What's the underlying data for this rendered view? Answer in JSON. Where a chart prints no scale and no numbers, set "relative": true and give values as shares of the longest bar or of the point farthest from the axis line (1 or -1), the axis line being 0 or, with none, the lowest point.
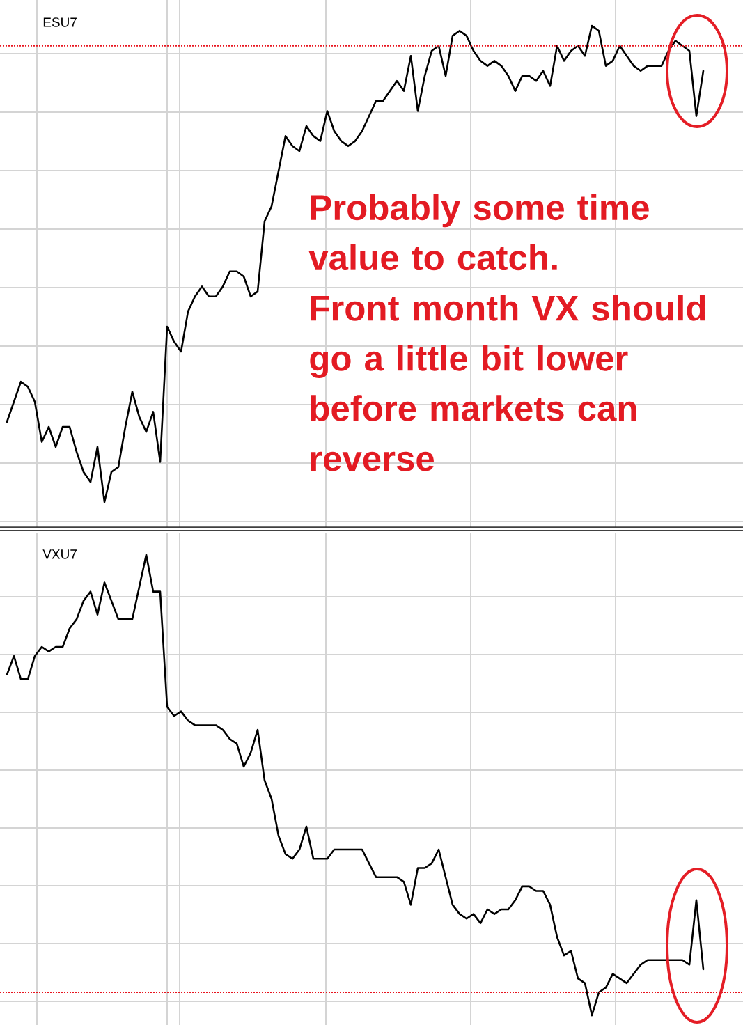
{
  "chart_data": [
    {
      "type": "line",
      "title": "ESU7",
      "relative": true,
      "grid": true,
      "categories": [
        null,
        null,
        null,
        null,
        null,
        null,
        null,
        null,
        null,
        null,
        null,
        null,
        null,
        null,
        null,
        null,
        null,
        null,
        null,
        null,
        null,
        null,
        null,
        null,
        null,
        null,
        null,
        null,
        null,
        null,
        null,
        null,
        null,
        null,
        null,
        null,
        null,
        null,
        null,
        null,
        null,
        null,
        null,
        null,
        null,
        null,
        null,
        null,
        null,
        null,
        null,
        null,
        null,
        null,
        null,
        null,
        null,
        null,
        null,
        null,
        null,
        null,
        null,
        null,
        null,
        null,
        null,
        null,
        null,
        null,
        null,
        null,
        null,
        null,
        null,
        null,
        null,
        null,
        null,
        null,
        null,
        null,
        null,
        null,
        null,
        null,
        null,
        null,
        null,
        null,
        null,
        null,
        null,
        null,
        null,
        null,
        null,
        null,
        null,
        null,
        null
      ],
      "series": [
        {
          "color": "#000000",
          "values": [
            0.21,
            0.25,
            0.29,
            0.28,
            0.25,
            0.17,
            0.2,
            0.16,
            0.2,
            0.2,
            0.15,
            0.11,
            0.09,
            0.16,
            0.05,
            0.11,
            0.12,
            0.2,
            0.27,
            0.22,
            0.19,
            0.23,
            0.13,
            0.4,
            0.37,
            0.35,
            0.43,
            0.46,
            0.48,
            0.46,
            0.46,
            0.48,
            0.51,
            0.51,
            0.5,
            0.46,
            0.47,
            0.61,
            0.64,
            0.71,
            0.78,
            0.76,
            0.75,
            0.8,
            0.78,
            0.77,
            0.83,
            0.79,
            0.77,
            0.76,
            0.77,
            0.79,
            0.82,
            0.85,
            0.85,
            0.87,
            0.89,
            0.87,
            0.94,
            0.83,
            0.9,
            0.95,
            0.96,
            0.9,
            0.98,
            0.99,
            0.98,
            0.95,
            0.93,
            0.92,
            0.93,
            0.92,
            0.9,
            0.87,
            0.9,
            0.9,
            0.89,
            0.91,
            0.88,
            0.96,
            0.93,
            0.95,
            0.96,
            0.94,
            1,
            0.99,
            0.92,
            0.93,
            0.96,
            0.94,
            0.92,
            0.91,
            0.92,
            0.92,
            0.92,
            0.95,
            0.97,
            0.96,
            0.95,
            0.82,
            0.91
          ]
        }
      ],
      "ref_lines": [
        {
          "axis": "y",
          "value": 0.96,
          "color": "#e8141e",
          "line_style": "dotted"
        }
      ],
      "annotations": [
        "Probably some time value to catch.",
        "Front month VX should go a little bit lower before markets can reverse"
      ]
    },
    {
      "type": "line",
      "title": "VXU7",
      "relative": true,
      "grid": true,
      "categories": [
        null,
        null,
        null,
        null,
        null,
        null,
        null,
        null,
        null,
        null,
        null,
        null,
        null,
        null,
        null,
        null,
        null,
        null,
        null,
        null,
        null,
        null,
        null,
        null,
        null,
        null,
        null,
        null,
        null,
        null,
        null,
        null,
        null,
        null,
        null,
        null,
        null,
        null,
        null,
        null,
        null,
        null,
        null,
        null,
        null,
        null,
        null,
        null,
        null,
        null,
        null,
        null,
        null,
        null,
        null,
        null,
        null,
        null,
        null,
        null,
        null,
        null,
        null,
        null,
        null,
        null,
        null,
        null,
        null,
        null,
        null,
        null,
        null,
        null,
        null,
        null,
        null,
        null,
        null,
        null,
        null,
        null,
        null,
        null,
        null,
        null,
        null,
        null,
        null,
        null,
        null,
        null,
        null,
        null,
        null,
        null,
        null,
        null,
        null,
        null,
        null
      ],
      "series": [
        {
          "color": "#000000",
          "values": [
            0.74,
            0.78,
            0.73,
            0.73,
            0.78,
            0.8,
            0.79,
            0.8,
            0.8,
            0.84,
            0.86,
            0.9,
            0.92,
            0.87,
            0.94,
            0.9,
            0.86,
            0.86,
            0.86,
            0.93,
            1,
            0.92,
            0.92,
            0.67,
            0.65,
            0.66,
            0.64,
            0.63,
            0.63,
            0.63,
            0.63,
            0.62,
            0.6,
            0.59,
            0.54,
            0.57,
            0.62,
            0.51,
            0.47,
            0.39,
            0.35,
            0.34,
            0.36,
            0.41,
            0.34,
            0.34,
            0.34,
            0.36,
            0.36,
            0.36,
            0.36,
            0.36,
            0.33,
            0.3,
            0.3,
            0.3,
            0.3,
            0.29,
            0.24,
            0.32,
            0.32,
            0.33,
            0.36,
            0.3,
            0.24,
            0.22,
            0.21,
            0.22,
            0.2,
            0.23,
            0.22,
            0.23,
            0.23,
            0.25,
            0.28,
            0.28,
            0.27,
            0.27,
            0.24,
            0.17,
            0.13,
            0.14,
            0.08,
            0.07,
            0,
            0.05,
            0.06,
            0.09,
            0.08,
            0.07,
            0.09,
            0.11,
            0.12,
            0.12,
            0.12,
            0.12,
            0.12,
            0.12,
            0.11,
            0.25,
            0.1
          ]
        }
      ],
      "ref_lines": [
        {
          "axis": "y",
          "value": 0.05,
          "color": "#e8141e",
          "line_style": "dotted"
        }
      ]
    }
  ]
}
